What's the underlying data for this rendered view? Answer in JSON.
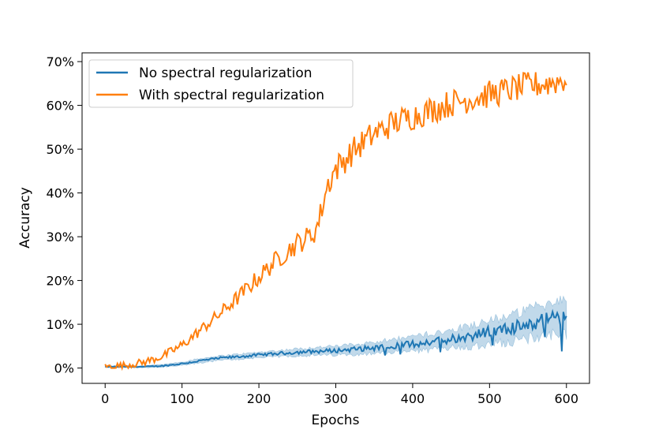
{
  "chart_data": {
    "type": "line",
    "title": "",
    "xlabel": "Epochs",
    "ylabel": "Accuracy",
    "xlim": [
      -30,
      630
    ],
    "ylim": [
      -3.5,
      72
    ],
    "xticks": [
      0,
      100,
      200,
      300,
      400,
      500,
      600
    ],
    "xtick_labels": [
      "0",
      "100",
      "200",
      "300",
      "400",
      "500",
      "600"
    ],
    "yticks": [
      0,
      10,
      20,
      30,
      40,
      50,
      60,
      70
    ],
    "ytick_labels": [
      "0%",
      "10%",
      "20%",
      "30%",
      "40%",
      "50%",
      "60%",
      "70%"
    ],
    "legend_position": "top-left",
    "grid": false,
    "series": [
      {
        "name": "No spectral regularization",
        "color": "#1f77b4",
        "band_color": "#1f77b4",
        "x": [
          0,
          25,
          50,
          75,
          100,
          125,
          150,
          175,
          200,
          225,
          250,
          275,
          300,
          325,
          350,
          375,
          400,
          425,
          450,
          475,
          500,
          525,
          550,
          575,
          600
        ],
        "values": [
          0.3,
          0.3,
          0.3,
          0.5,
          1.0,
          1.7,
          2.3,
          2.6,
          3.0,
          3.3,
          3.6,
          3.8,
          4.0,
          4.3,
          4.6,
          5.0,
          5.5,
          6.0,
          6.7,
          7.4,
          8.2,
          9.0,
          10.0,
          11.2,
          11.5
        ],
        "band_halfwidth": [
          0.2,
          0.2,
          0.2,
          0.3,
          0.4,
          0.5,
          0.5,
          0.6,
          0.6,
          0.7,
          0.8,
          0.9,
          1.0,
          1.1,
          1.3,
          1.5,
          1.7,
          1.9,
          2.1,
          2.4,
          2.7,
          3.0,
          3.3,
          3.6,
          4.0
        ]
      },
      {
        "name": "With spectral regularization",
        "color": "#ff7f0e",
        "x": [
          0,
          25,
          50,
          75,
          100,
          125,
          150,
          175,
          200,
          225,
          250,
          260,
          270,
          275,
          280,
          285,
          290,
          295,
          300,
          325,
          350,
          375,
          400,
          425,
          450,
          475,
          500,
          525,
          550,
          575,
          600
        ],
        "values": [
          0.3,
          0.6,
          1.3,
          2.7,
          5.2,
          8.8,
          12.5,
          16.5,
          20.8,
          25.0,
          28.5,
          29.5,
          30.5,
          32,
          35,
          39,
          42,
          44,
          45.5,
          50,
          53.5,
          56,
          57.5,
          59,
          60.5,
          61.5,
          62.5,
          63.5,
          64.5,
          65,
          66
        ]
      }
    ]
  }
}
